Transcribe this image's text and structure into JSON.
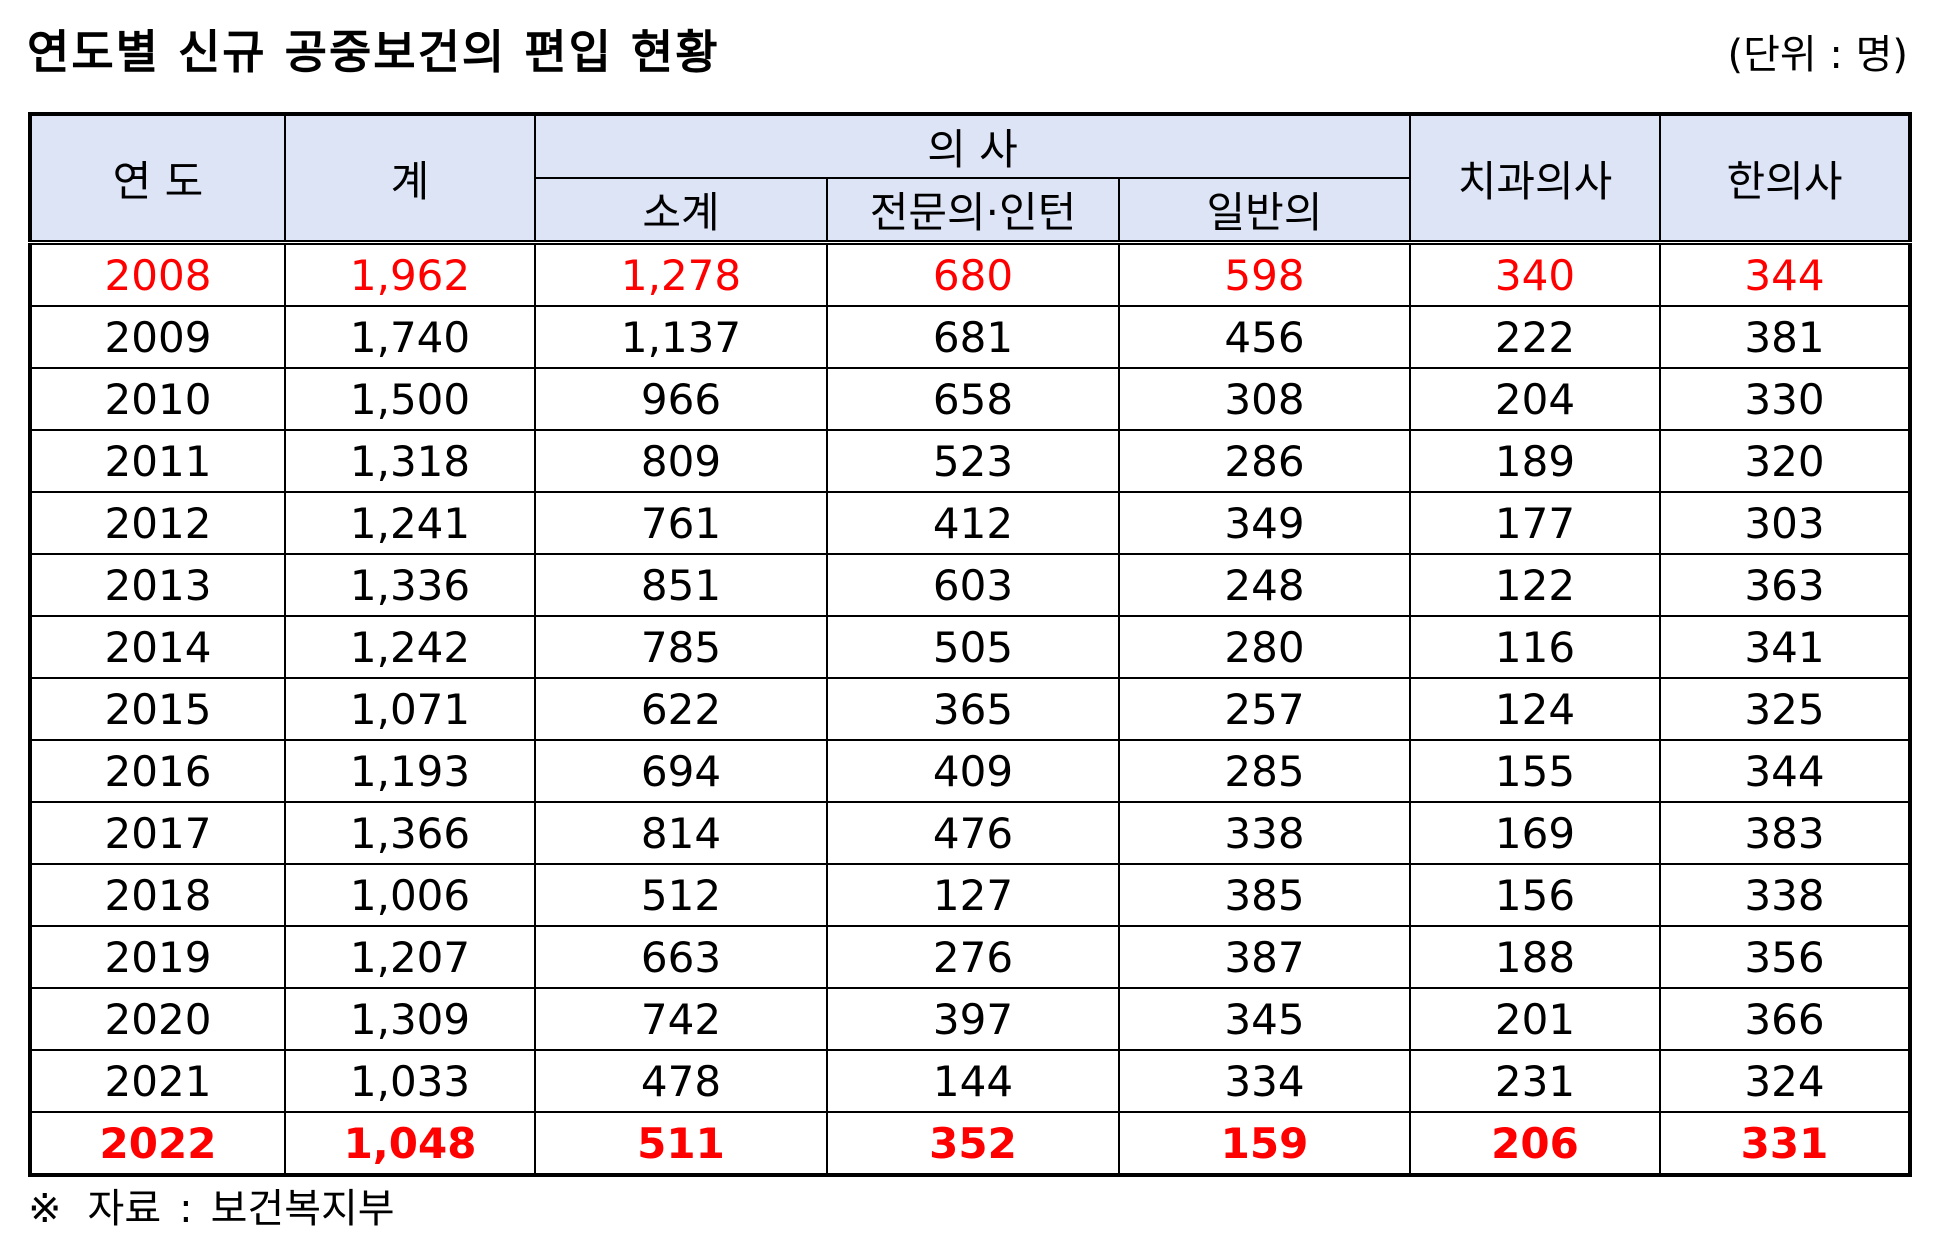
{
  "title": "연도별 신규 공중보건의 편입 현황",
  "unit": "(단위 : 명)",
  "table": {
    "headers": {
      "year": "연 도",
      "total": "계",
      "doctor_group": "의 사",
      "doctor_subtotal": "소계",
      "specialist_intern": "전문의·인턴",
      "general": "일반의",
      "dentist": "치과의사",
      "oriental": "한의사"
    },
    "rows": [
      [
        "2008",
        "1,962",
        "1,278",
        "680",
        "598",
        "340",
        "344"
      ],
      [
        "2009",
        "1,740",
        "1,137",
        "681",
        "456",
        "222",
        "381"
      ],
      [
        "2010",
        "1,500",
        "966",
        "658",
        "308",
        "204",
        "330"
      ],
      [
        "2011",
        "1,318",
        "809",
        "523",
        "286",
        "189",
        "320"
      ],
      [
        "2012",
        "1,241",
        "761",
        "412",
        "349",
        "177",
        "303"
      ],
      [
        "2013",
        "1,336",
        "851",
        "603",
        "248",
        "122",
        "363"
      ],
      [
        "2014",
        "1,242",
        "785",
        "505",
        "280",
        "116",
        "341"
      ],
      [
        "2015",
        "1,071",
        "622",
        "365",
        "257",
        "124",
        "325"
      ],
      [
        "2016",
        "1,193",
        "694",
        "409",
        "285",
        "155",
        "344"
      ],
      [
        "2017",
        "1,366",
        "814",
        "476",
        "338",
        "169",
        "383"
      ],
      [
        "2018",
        "1,006",
        "512",
        "127",
        "385",
        "156",
        "338"
      ],
      [
        "2019",
        "1,207",
        "663",
        "276",
        "387",
        "188",
        "356"
      ],
      [
        "2020",
        "1,309",
        "742",
        "397",
        "345",
        "201",
        "366"
      ],
      [
        "2021",
        "1,033",
        "478",
        "144",
        "334",
        "231",
        "324"
      ],
      [
        "2022",
        "1,048",
        "511",
        "352",
        "159",
        "206",
        "331"
      ]
    ],
    "highlight_color": "#ff0000"
  },
  "note": {
    "symbol": "※",
    "label": "자료",
    "separator": ":",
    "source": "보건복지부"
  }
}
